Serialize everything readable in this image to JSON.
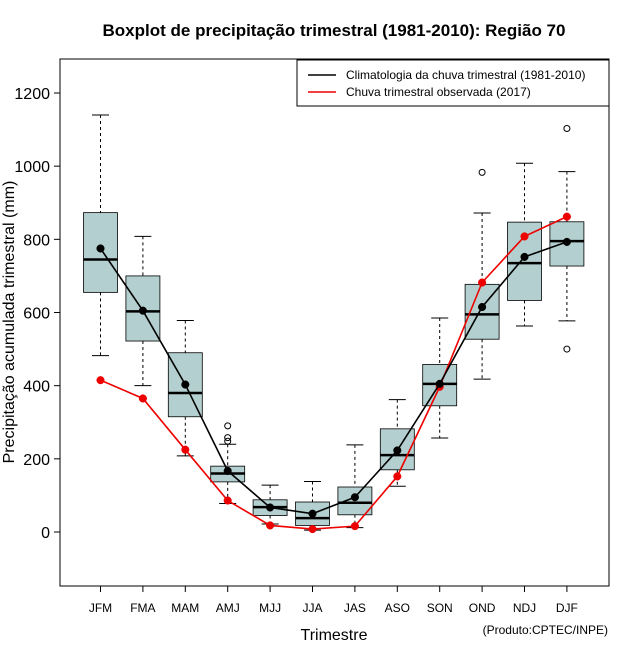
{
  "chart_data": {
    "type": "boxplot",
    "title": "Boxplot de precipitação trimestral (1981-2010): Região 70",
    "xlabel": "Trimestre",
    "ylabel": "Precipitação acumulada trimestral (mm)",
    "credit": "(Produto:CPTEC/INPE)",
    "ylim": [
      -150,
      1290
    ],
    "yticks": [
      0,
      200,
      400,
      600,
      800,
      1000,
      1200
    ],
    "categories": [
      "JFM",
      "FMA",
      "MAM",
      "AMJ",
      "MJJ",
      "JJA",
      "JAS",
      "ASO",
      "SON",
      "OND",
      "NDJ",
      "DJF"
    ],
    "boxes": [
      {
        "whisker_low": 482,
        "q1": 655,
        "median": 745,
        "q3": 873,
        "whisker_high": 1140,
        "outliers": []
      },
      {
        "whisker_low": 400,
        "q1": 522,
        "median": 603,
        "q3": 700,
        "whisker_high": 808,
        "outliers": []
      },
      {
        "whisker_low": 208,
        "q1": 315,
        "median": 380,
        "q3": 490,
        "whisker_high": 578,
        "outliers": []
      },
      {
        "whisker_low": 78,
        "q1": 137,
        "median": 160,
        "q3": 180,
        "whisker_high": 240,
        "outliers": [
          290,
          258,
          248
        ]
      },
      {
        "whisker_low": 22,
        "q1": 45,
        "median": 68,
        "q3": 88,
        "whisker_high": 128,
        "outliers": []
      },
      {
        "whisker_low": 5,
        "q1": 18,
        "median": 38,
        "q3": 82,
        "whisker_high": 138,
        "outliers": []
      },
      {
        "whisker_low": 12,
        "q1": 47,
        "median": 80,
        "q3": 123,
        "whisker_high": 238,
        "outliers": []
      },
      {
        "whisker_low": 125,
        "q1": 170,
        "median": 210,
        "q3": 282,
        "whisker_high": 362,
        "outliers": []
      },
      {
        "whisker_low": 257,
        "q1": 345,
        "median": 405,
        "q3": 458,
        "whisker_high": 585,
        "outliers": []
      },
      {
        "whisker_low": 418,
        "q1": 527,
        "median": 595,
        "q3": 677,
        "whisker_high": 872,
        "outliers": [
          983
        ]
      },
      {
        "whisker_low": 563,
        "q1": 633,
        "median": 735,
        "q3": 847,
        "whisker_high": 1008,
        "outliers": []
      },
      {
        "whisker_low": 577,
        "q1": 727,
        "median": 795,
        "q3": 848,
        "whisker_high": 985,
        "outliers": [
          1103,
          500
        ]
      }
    ],
    "series": [
      {
        "name": "Climatologia da chuva trimestral (1981-2010)",
        "color": "#000000",
        "values": [
          775,
          605,
          403,
          167,
          67,
          50,
          95,
          223,
          405,
          615,
          752,
          793
        ]
      },
      {
        "name": "Chuva trimestral observada (2017)",
        "color": "#ee0000",
        "values": [
          415,
          365,
          225,
          86,
          18,
          8,
          16,
          152,
          397,
          682,
          808,
          862
        ]
      }
    ],
    "box_fill": "#b4cfcf",
    "legend_position": "top-right"
  }
}
